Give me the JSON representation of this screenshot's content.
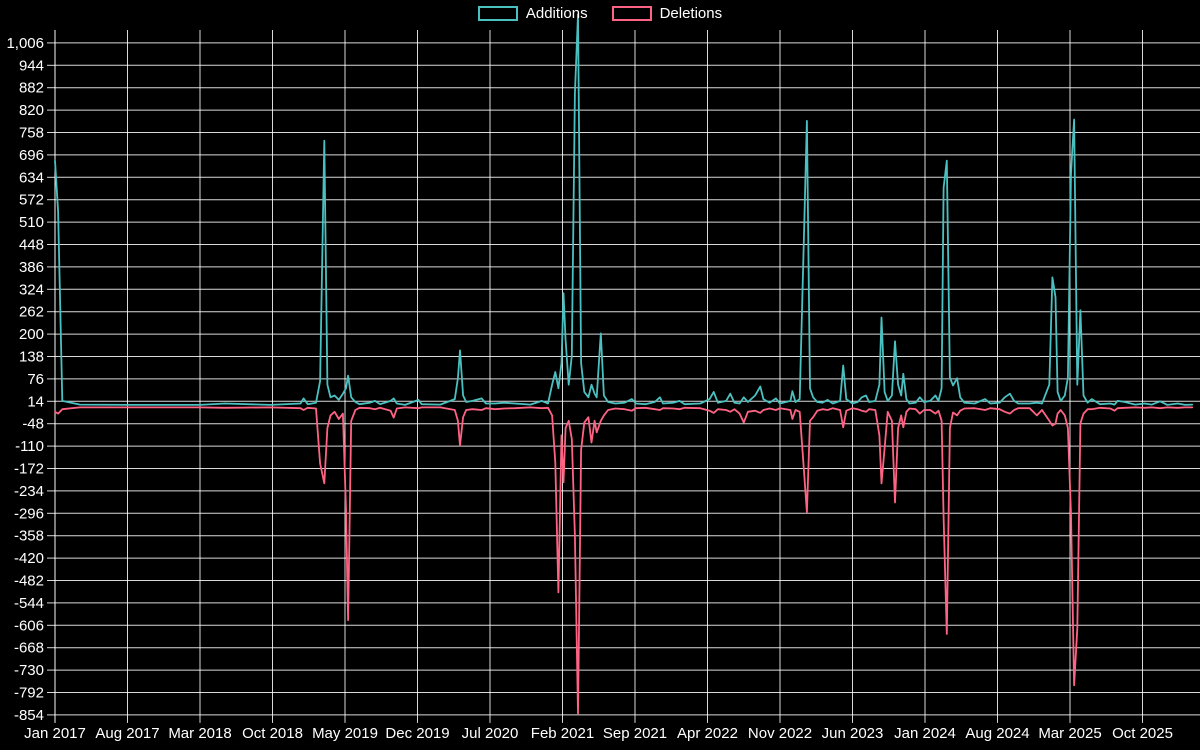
{
  "legend": {
    "additions_label": "Additions",
    "deletions_label": "Deletions"
  },
  "colors": {
    "background": "#000000",
    "additions": "#4bc0c0",
    "deletions": "#ff6384",
    "grid": "rgba(255,255,255,0.85)",
    "text": "#ffffff"
  },
  "chart_data": {
    "type": "line",
    "title": "",
    "xlabel": "",
    "ylabel": "",
    "legend_position": "top-center",
    "grid": true,
    "x_axis": {
      "tick_labels": [
        "Jan 2017",
        "Aug 2017",
        "Mar 2018",
        "Oct 2018",
        "May 2019",
        "Dec 2019",
        "Jul 2020",
        "Feb 2021",
        "Sep 2021",
        "Apr 2022",
        "Nov 2022",
        "Jun 2023",
        "Jan 2024",
        "Aug 2024",
        "Mar 2025",
        "Oct 2025"
      ],
      "tick_interval_months": 7
    },
    "y_axis": {
      "tick_labels": [
        "1,006",
        "944",
        "882",
        "820",
        "758",
        "696",
        "634",
        "572",
        "510",
        "448",
        "386",
        "324",
        "262",
        "200",
        "138",
        "76",
        "14",
        "-48",
        "-110",
        "-172",
        "-234",
        "-296",
        "-358",
        "-420",
        "-482",
        "-544",
        "-606",
        "-668",
        "-730",
        "-792",
        "-854"
      ],
      "tick_values": [
        1006,
        944,
        882,
        820,
        758,
        696,
        634,
        572,
        510,
        448,
        386,
        324,
        262,
        200,
        138,
        76,
        14,
        -48,
        -110,
        -172,
        -234,
        -296,
        -358,
        -420,
        -482,
        -544,
        -606,
        -668,
        -730,
        -792,
        -854
      ],
      "max": 1006,
      "min": -854,
      "step": 62
    },
    "series_names": [
      "Additions",
      "Deletions"
    ],
    "x_unit": "months_since_Jan_2017",
    "points": [
      [
        0,
        680,
        -15
      ],
      [
        0.3,
        540,
        -20
      ],
      [
        0.7,
        15,
        -8
      ],
      [
        2.4,
        5,
        -3
      ],
      [
        7.2,
        4,
        -3
      ],
      [
        14,
        4,
        -3
      ],
      [
        16.4,
        8,
        -4
      ],
      [
        20.8,
        4,
        -3
      ],
      [
        23.7,
        8,
        -5
      ],
      [
        24,
        22,
        -10
      ],
      [
        24.4,
        6,
        -4
      ],
      [
        25.2,
        10,
        -6
      ],
      [
        25.6,
        70,
        -158
      ],
      [
        26,
        735,
        -213
      ],
      [
        26.3,
        60,
        -60
      ],
      [
        26.6,
        25,
        -25
      ],
      [
        27,
        30,
        -15
      ],
      [
        27.4,
        18,
        -35
      ],
      [
        27.8,
        35,
        -20
      ],
      [
        28.1,
        50,
        -285
      ],
      [
        28.3,
        85,
        -592
      ],
      [
        28.6,
        25,
        -40
      ],
      [
        29,
        12,
        -10
      ],
      [
        29.4,
        6,
        -4
      ],
      [
        30.4,
        10,
        -5
      ],
      [
        30.9,
        15,
        -8
      ],
      [
        31.4,
        6,
        -4
      ],
      [
        32.4,
        15,
        -12
      ],
      [
        32.7,
        22,
        -31
      ],
      [
        33,
        8,
        -6
      ],
      [
        33.8,
        4,
        -3
      ],
      [
        35.1,
        18,
        -5
      ],
      [
        35.4,
        6,
        -3
      ],
      [
        37.2,
        5,
        -3
      ],
      [
        38.6,
        20,
        -10
      ],
      [
        38.9,
        78,
        -40
      ],
      [
        39.1,
        155,
        -108
      ],
      [
        39.4,
        30,
        -30
      ],
      [
        39.7,
        12,
        -10
      ],
      [
        40.3,
        15,
        -8
      ],
      [
        41.2,
        22,
        -10
      ],
      [
        41.6,
        8,
        -5
      ],
      [
        42.5,
        8,
        -8
      ],
      [
        43.4,
        10,
        -6
      ],
      [
        44.4,
        8,
        -5
      ],
      [
        45.9,
        5,
        -3
      ],
      [
        47,
        15,
        -5
      ],
      [
        47.6,
        8,
        -4
      ],
      [
        48,
        60,
        -25
      ],
      [
        48.3,
        95,
        -155
      ],
      [
        48.6,
        50,
        -515
      ],
      [
        48.9,
        120,
        -80
      ],
      [
        49.1,
        313,
        -210
      ],
      [
        49.3,
        183,
        -60
      ],
      [
        49.6,
        60,
        -40
      ],
      [
        49.9,
        140,
        -90
      ],
      [
        50.2,
        866,
        -357
      ],
      [
        50.5,
        1085,
        -850
      ],
      [
        50.8,
        120,
        -120
      ],
      [
        51.1,
        40,
        -45
      ],
      [
        51.5,
        25,
        -30
      ],
      [
        51.8,
        60,
        -100
      ],
      [
        52.1,
        35,
        -40
      ],
      [
        52.3,
        25,
        -72
      ],
      [
        52.7,
        202,
        -40
      ],
      [
        53,
        30,
        -25
      ],
      [
        53.4,
        12,
        -10
      ],
      [
        54.1,
        8,
        -6
      ],
      [
        55,
        10,
        -8
      ],
      [
        55.7,
        20,
        -12
      ],
      [
        56.1,
        8,
        -5
      ],
      [
        57,
        6,
        -4
      ],
      [
        57.9,
        12,
        -8
      ],
      [
        58.4,
        25,
        -10
      ],
      [
        58.7,
        8,
        -5
      ],
      [
        59.7,
        10,
        -6
      ],
      [
        60.3,
        15,
        -8
      ],
      [
        60.8,
        6,
        -4
      ],
      [
        62.3,
        8,
        -5
      ],
      [
        63.2,
        20,
        -12
      ],
      [
        63.6,
        40,
        -18
      ],
      [
        64,
        10,
        -8
      ],
      [
        64.8,
        15,
        -10
      ],
      [
        65.2,
        35,
        -15
      ],
      [
        65.6,
        10,
        -8
      ],
      [
        66.1,
        8,
        -20
      ],
      [
        66.5,
        25,
        -45
      ],
      [
        66.9,
        12,
        -15
      ],
      [
        67.6,
        30,
        -12
      ],
      [
        68.1,
        55,
        -18
      ],
      [
        68.4,
        20,
        -10
      ],
      [
        69,
        10,
        -6
      ],
      [
        69.6,
        22,
        -10
      ],
      [
        70,
        8,
        -5
      ],
      [
        71,
        15,
        -10
      ],
      [
        71.2,
        42,
        -35
      ],
      [
        71.5,
        12,
        -10
      ],
      [
        71.9,
        20,
        -15
      ],
      [
        72.3,
        455,
        -172
      ],
      [
        72.6,
        790,
        -293
      ],
      [
        72.9,
        50,
        -40
      ],
      [
        73.2,
        25,
        -30
      ],
      [
        73.6,
        12,
        -12
      ],
      [
        74.1,
        10,
        -8
      ],
      [
        74.6,
        18,
        -10
      ],
      [
        75.1,
        8,
        -5
      ],
      [
        75.8,
        15,
        -10
      ],
      [
        76.1,
        113,
        -58
      ],
      [
        76.4,
        20,
        -12
      ],
      [
        77,
        8,
        -5
      ],
      [
        77.5,
        12,
        -8
      ],
      [
        77.9,
        25,
        -12
      ],
      [
        78.3,
        30,
        -15
      ],
      [
        78.6,
        12,
        -8
      ],
      [
        79.2,
        15,
        -10
      ],
      [
        79.6,
        60,
        -80
      ],
      [
        79.8,
        246,
        -213
      ],
      [
        80.1,
        40,
        -116
      ],
      [
        80.4,
        15,
        -15
      ],
      [
        80.8,
        30,
        -40
      ],
      [
        81.1,
        180,
        -266
      ],
      [
        81.4,
        60,
        -60
      ],
      [
        81.7,
        30,
        -25
      ],
      [
        81.9,
        90,
        -58
      ],
      [
        82.2,
        20,
        -15
      ],
      [
        82.5,
        8,
        -6
      ],
      [
        83.1,
        10,
        -8
      ],
      [
        83.5,
        25,
        -20
      ],
      [
        83.9,
        12,
        -10
      ],
      [
        84.5,
        15,
        -10
      ],
      [
        85,
        30,
        -20
      ],
      [
        85.3,
        15,
        -12
      ],
      [
        85.6,
        50,
        -40
      ],
      [
        85.8,
        605,
        -307
      ],
      [
        86.1,
        680,
        -630
      ],
      [
        86.4,
        80,
        -60
      ],
      [
        86.7,
        58,
        -17
      ],
      [
        87.1,
        78,
        -25
      ],
      [
        87.4,
        25,
        -12
      ],
      [
        87.8,
        10,
        -6
      ],
      [
        88.8,
        8,
        -5
      ],
      [
        89.8,
        20,
        -10
      ],
      [
        90.3,
        8,
        -5
      ],
      [
        91.2,
        10,
        -8
      ],
      [
        91.7,
        25,
        -15
      ],
      [
        92.2,
        35,
        -20
      ],
      [
        92.6,
        15,
        -10
      ],
      [
        93,
        8,
        -5
      ],
      [
        94.1,
        8,
        -5
      ],
      [
        94.8,
        10,
        -25
      ],
      [
        95.3,
        8,
        -10
      ],
      [
        96,
        60,
        -40
      ],
      [
        96.3,
        357,
        -53
      ],
      [
        96.6,
        302,
        -48
      ],
      [
        96.8,
        40,
        -20
      ],
      [
        97.1,
        15,
        -10
      ],
      [
        97.5,
        30,
        -25
      ],
      [
        97.8,
        80,
        -60
      ],
      [
        98.1,
        645,
        -300
      ],
      [
        98.4,
        794,
        -772
      ],
      [
        98.7,
        60,
        -615
      ],
      [
        99,
        266,
        -47
      ],
      [
        99.3,
        30,
        -20
      ],
      [
        99.7,
        10,
        -8
      ],
      [
        100.1,
        20,
        -8
      ],
      [
        100.9,
        6,
        -4
      ],
      [
        101.9,
        8,
        -6
      ],
      [
        102.3,
        5,
        -12
      ],
      [
        102.6,
        15,
        -5
      ],
      [
        103.3,
        12,
        -4
      ],
      [
        104.3,
        5,
        -3
      ],
      [
        105.2,
        8,
        -4
      ],
      [
        105.9,
        5,
        -3
      ],
      [
        106.7,
        14,
        -5
      ],
      [
        107.4,
        4,
        -3
      ],
      [
        108.4,
        8,
        -4
      ],
      [
        109.1,
        4,
        -3
      ],
      [
        109.8,
        5,
        -3
      ]
    ]
  }
}
